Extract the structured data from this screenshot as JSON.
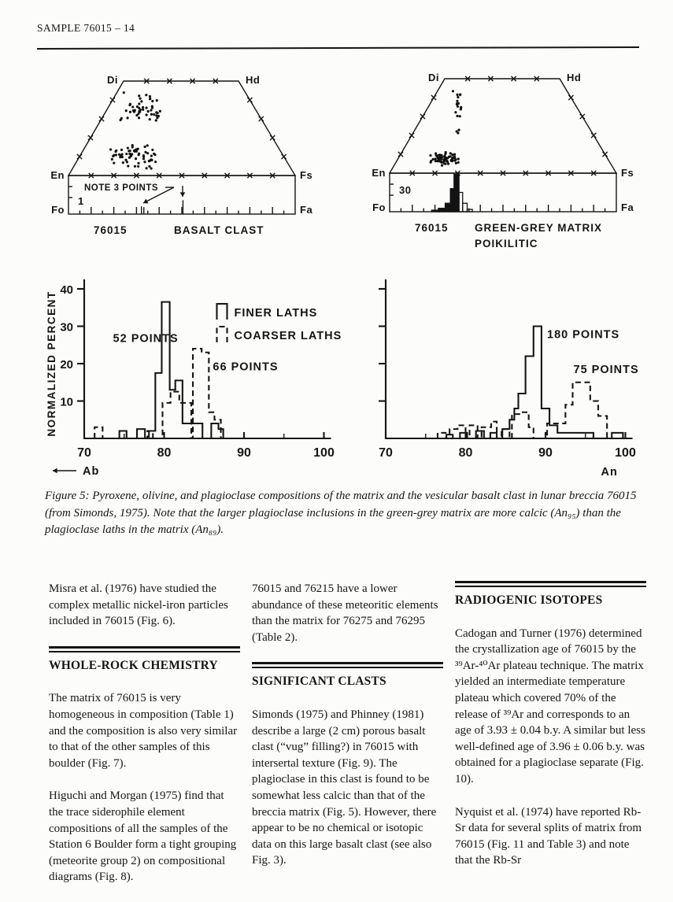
{
  "page": {
    "header": "SAMPLE 76015 – 14"
  },
  "pyroxene_diagrams": [
    {
      "id": "basalt-clast",
      "corners": {
        "top_left": "Di",
        "top_right": "Hd",
        "bottom_left": "En",
        "bottom_right": "Fs",
        "bar_left": "Fo",
        "bar_right": "Fa"
      },
      "sample": "76015",
      "title": "BASALT CLAST",
      "title2": "",
      "scale_label": "1",
      "note": "NOTE 3 POINTS",
      "clusters": [
        {
          "fx": 0.33,
          "fy": 0.27,
          "sx": 0.065,
          "sy": 0.115,
          "n": 48,
          "seed": 7
        },
        {
          "fx": 0.29,
          "fy": 0.8,
          "sx": 0.068,
          "sy": 0.085,
          "n": 62,
          "seed": 13
        }
      ],
      "olivine_marks": [
        {
          "fx": 0.322,
          "h": 0.2,
          "double": true
        },
        {
          "fx": 0.505,
          "h": 0.36,
          "double": false
        }
      ],
      "olivine_hist": []
    },
    {
      "id": "green-grey-matrix",
      "corners": {
        "top_left": "Di",
        "top_right": "Hd",
        "bottom_left": "En",
        "bottom_right": "Fs",
        "bar_left": "Fo",
        "bar_right": "Fa"
      },
      "sample": "76015",
      "title": "GREEN-GREY MATRIX",
      "title2": "POIKILITIC",
      "scale_label": "30",
      "note": "",
      "clusters": [
        {
          "fx": 0.305,
          "fy": 0.26,
          "sx": 0.017,
          "sy": 0.12,
          "n": 16,
          "seed": 21
        },
        {
          "fx": 0.3,
          "fy": 0.55,
          "sx": 0.008,
          "sy": 0.03,
          "n": 3,
          "seed": 5
        },
        {
          "fx": 0.245,
          "fy": 0.85,
          "sx": 0.042,
          "sy": 0.048,
          "n": 72,
          "seed": 31
        }
      ],
      "olivine_marks": [],
      "olivine_hist": [
        [
          0.185,
          0.215,
          0.04,
          true
        ],
        [
          0.215,
          0.245,
          0.09,
          true
        ],
        [
          0.245,
          0.268,
          0.22,
          true
        ],
        [
          0.268,
          0.284,
          0.6,
          true
        ],
        [
          0.284,
          0.306,
          0.97,
          true
        ],
        [
          0.306,
          0.322,
          0.5,
          false
        ],
        [
          0.322,
          0.342,
          0.22,
          false
        ],
        [
          0.342,
          0.365,
          0.06,
          false
        ]
      ]
    }
  ],
  "chart_data": [
    {
      "type": "histogram",
      "ylabel": "NORMALIZED PERCENT",
      "x_corner_label": "Ab",
      "x_corner_side": "left",
      "xlim": [
        70,
        100
      ],
      "ylim": [
        0,
        40
      ],
      "xticks": [
        70,
        80,
        90,
        100
      ],
      "xticks_minor": [
        75,
        95
      ],
      "yticks": [
        10,
        20,
        30,
        40
      ],
      "ytick_labels": true,
      "legend": true,
      "series": [
        {
          "name": "FINER LATHS",
          "style": "solid",
          "points_label": "52 POINTS",
          "label_xy": [
            73.6,
            25.8
          ],
          "bins": [
            [
              74.4,
              75.3,
              2
            ],
            [
              76.6,
              77.6,
              2.5
            ],
            [
              78.1,
              78.9,
              2
            ],
            [
              78.9,
              79.7,
              17.5
            ],
            [
              79.7,
              80.7,
              36.5
            ],
            [
              80.7,
              81.4,
              13
            ],
            [
              81.4,
              82.3,
              15.5
            ],
            [
              82.3,
              84.8,
              4
            ],
            [
              85.9,
              86.8,
              4
            ],
            [
              86.8,
              87.4,
              2.5
            ]
          ]
        },
        {
          "name": "COARSER LATHS",
          "style": "dashed",
          "points_label": "66 POINTS",
          "label_xy": [
            86.1,
            18.2
          ],
          "bins": [
            [
              71.3,
              72.3,
              3
            ],
            [
              77.9,
              78.6,
              2
            ],
            [
              79.8,
              80.8,
              9.5
            ],
            [
              80.8,
              81.9,
              12.5
            ],
            [
              81.9,
              83.4,
              9.5
            ],
            [
              83.6,
              84.7,
              24
            ],
            [
              84.7,
              85.6,
              23
            ],
            [
              85.6,
              86.3,
              7
            ],
            [
              86.3,
              87.1,
              5
            ]
          ]
        }
      ]
    },
    {
      "type": "histogram",
      "ylabel": "",
      "x_corner_label": "An",
      "x_corner_side": "right",
      "xlim": [
        70,
        100
      ],
      "ylim": [
        0,
        40
      ],
      "xticks": [
        70,
        80,
        90,
        100
      ],
      "xticks_minor": [
        75,
        95
      ],
      "yticks": [
        10,
        20,
        30,
        40
      ],
      "ytick_labels": false,
      "legend": false,
      "series": [
        {
          "name": "",
          "style": "solid",
          "points_label": "180 POINTS",
          "label_xy": [
            90.2,
            26.8
          ],
          "bins": [
            [
              77.6,
              78.4,
              1
            ],
            [
              79.3,
              80.2,
              1.5
            ],
            [
              81.3,
              82.3,
              2
            ],
            [
              83.1,
              83.9,
              1.5
            ],
            [
              84.6,
              85.5,
              2.5
            ],
            [
              85.5,
              86.1,
              5
            ],
            [
              86.1,
              86.6,
              8
            ],
            [
              86.6,
              87.5,
              12
            ],
            [
              87.5,
              88.5,
              22
            ],
            [
              88.5,
              89.5,
              30
            ],
            [
              89.5,
              90.5,
              8
            ],
            [
              90.5,
              91.5,
              3.5
            ],
            [
              91.5,
              96,
              1.5
            ],
            [
              98.3,
              99.7,
              1.5
            ]
          ]
        },
        {
          "name": "",
          "style": "dashed",
          "points_label": "75 POINTS",
          "label_xy": [
            93.5,
            17.5
          ],
          "bins": [
            [
              76.5,
              77.5,
              1.5
            ],
            [
              78,
              79,
              2.5
            ],
            [
              79,
              80,
              3.5
            ],
            [
              80.5,
              81.5,
              3.5
            ],
            [
              82,
              83.2,
              3
            ],
            [
              83.2,
              83.9,
              4.5
            ],
            [
              84.5,
              85.5,
              2.5
            ],
            [
              85.8,
              86.9,
              6.5
            ],
            [
              86.9,
              87.9,
              7
            ],
            [
              87.9,
              88.5,
              3
            ],
            [
              90.2,
              92.5,
              4
            ],
            [
              92.5,
              93.4,
              9
            ],
            [
              93.4,
              95.6,
              15
            ],
            [
              95.6,
              96.6,
              10
            ],
            [
              96.6,
              97.7,
              6
            ]
          ]
        }
      ]
    }
  ],
  "figure_caption": "Figure 5:  Pyroxene, olivine, and plagioclase compositions of the matrix and the vesicular basalt clast in lunar breccia 76015 (from Simonds, 1975).  Note that the larger plagioclase inclusions in the green-grey matrix are more calcic (An₉₅) than the plagioclase laths in the matrix (An₈₉).",
  "columns": {
    "left": {
      "p1": "Misra et al. (1976) have studied the complex metallic nickel-iron particles included in 76015 (Fig. 6).",
      "heading": "WHOLE-ROCK CHEMISTRY",
      "p2": "The matrix of 76015 is very homogeneous in composition (Table 1) and the composition is also very similar to that of the other samples of this boulder (Fig. 7).",
      "p3": "Higuchi and Morgan (1975) find that the trace siderophile element compositions of all the samples of the Station 6 Boulder form a tight grouping (meteorite group 2) on compositional diagrams (Fig. 8)."
    },
    "middle": {
      "p1": "76015 and 76215 have a lower abundance of these meteoritic elements than the matrix for 76275 and 76295 (Table 2).",
      "heading": "SIGNIFICANT CLASTS",
      "p2": "Simonds (1975) and Phinney (1981) describe a large (2 cm) porous basalt clast (“vug” filling?) in 76015 with intersertal texture (Fig. 9).  The plagioclase in this clast is found to be somewhat less calcic than that of the breccia matrix (Fig. 5).  However, there appear to be no chemical or isotopic data on this large basalt clast (see also Fig. 3)."
    },
    "right": {
      "heading": "RADIOGENIC ISOTOPES",
      "p1": "Cadogan and Turner (1976) determined the crystallization age of 76015 by the ³⁹Ar-⁴⁰Ar plateau technique.  The matrix yielded an intermediate temperature plateau which covered 70% of the release of ³⁹Ar and corresponds to an age of 3.93 ± 0.04 b.y.  A similar but less well-defined age of 3.96 ± 0.06 b.y. was obtained for a plagioclase separate (Fig. 10).",
      "p2": "Nyquist et al. (1974) have reported Rb-Sr data for several splits of matrix from 76015 (Fig. 11 and Table 3) and note that the Rb-Sr"
    }
  }
}
